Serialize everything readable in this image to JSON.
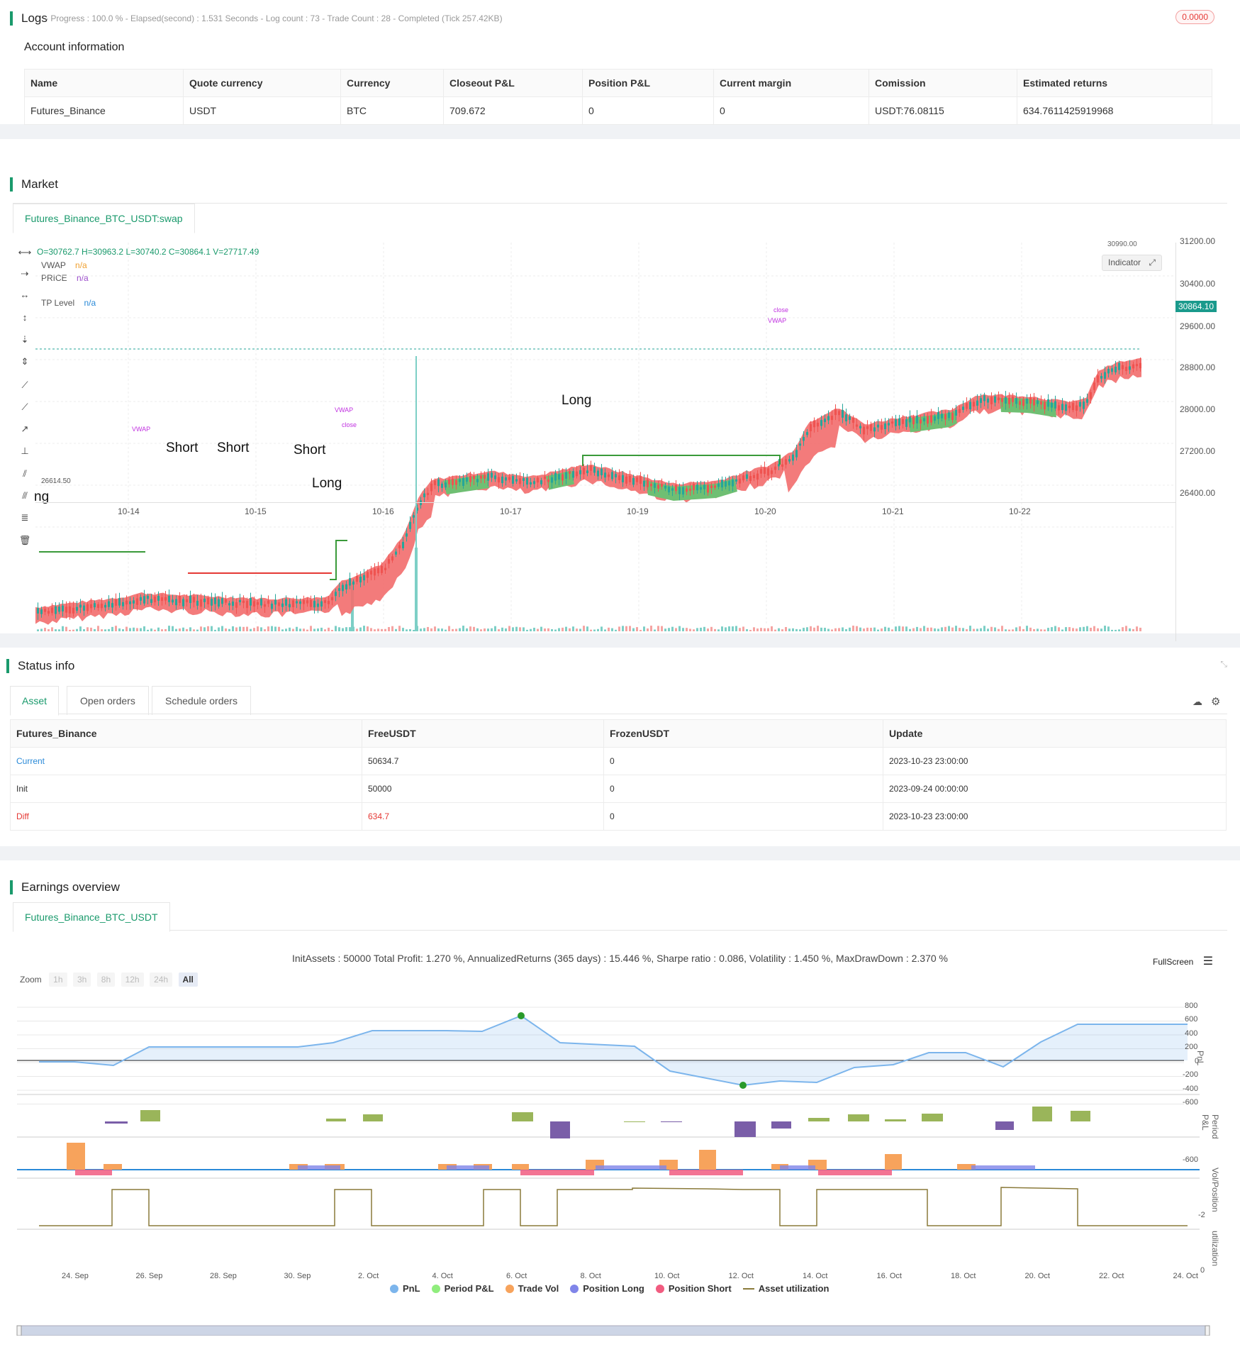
{
  "logs": {
    "title": "Logs",
    "status_line": "- Progress : 100.0 % - Elapsed(second) : 1.531  Seconds - Log count : 73 - Trade Count : 28 - Completed (Tick 257.42KB)",
    "badge": "0.0000"
  },
  "account": {
    "title": "Account information",
    "headers": [
      "Name",
      "Quote currency",
      "Currency",
      "Closeout P&L",
      "Position P&L",
      "Current margin",
      "Comission",
      "Estimated returns"
    ],
    "row": [
      "Futures_Binance",
      "USDT",
      "BTC",
      "709.672",
      "0",
      "0",
      "USDT:76.08115",
      "634.7611425919968"
    ]
  },
  "market": {
    "title": "Market",
    "tab": "Futures_Binance_BTC_USDT:swap",
    "ohlc": "O=30762.7 H=30963.2 L=30740.2 C=30864.1 V=27717.49",
    "legend": [
      {
        "name": "VWAP",
        "value": "n/a",
        "color": "#f0a030"
      },
      {
        "name": "PRICE",
        "value": "n/a",
        "color": "#9c4dcc"
      },
      {
        "name": "TP Level",
        "value": "n/a",
        "color": "#2a8ad8"
      }
    ],
    "indicator_btn": "Indicator",
    "y_ticks": [
      "31200.00",
      "30400.00",
      "29600.00",
      "28800.00",
      "28000.00",
      "27200.00",
      "26400.00"
    ],
    "price_tag": "30864.10",
    "high_mark": "30990.00",
    "low_mark": "26614.50",
    "x_ticks": [
      "10-14",
      "10-15",
      "10-16",
      "10-17",
      "10-19",
      "10-20",
      "10-21",
      "10-22"
    ],
    "signals": [
      "Short",
      "Short",
      "Short",
      "Long",
      "Long",
      "ng"
    ],
    "small_labels": [
      "VWAP",
      "close",
      "VWAP",
      "close",
      "VWAP",
      "close"
    ],
    "colors": {
      "up": "#26a69a",
      "down": "#ef5350",
      "fill_red": "#f26d6d",
      "fill_green": "#6fbf73",
      "tp_green": "#3a9a3a",
      "sl_red": "#e53935"
    }
  },
  "status": {
    "title": "Status info",
    "tabs": [
      "Asset",
      "Open orders",
      "Schedule orders"
    ],
    "headers": [
      "Futures_Binance",
      "FreeUSDT",
      "FrozenUSDT",
      "Update"
    ],
    "rows": [
      [
        "Current",
        "50634.7",
        "0",
        "2023-10-23 23:00:00"
      ],
      [
        "Init",
        "50000",
        "0",
        "2023-09-24 00:00:00"
      ],
      [
        "Diff",
        "634.7",
        "0",
        "2023-10-23 23:00:00"
      ]
    ]
  },
  "earnings": {
    "title": "Earnings overview",
    "tab": "Futures_Binance_BTC_USDT",
    "summary": "InitAssets : 50000 Total Profit: 1.270 %, AnnualizedReturns (365 days) : 15.446 %, Sharpe ratio : 0.086, Volatility : 1.450 %, MaxDrawDown : 2.370 %",
    "fullscreen": "FullScreen",
    "zoom_label": "Zoom",
    "zoom_options": [
      "1h",
      "3h",
      "8h",
      "12h",
      "24h",
      "All"
    ],
    "pnl_ticks": [
      "800",
      "600",
      "400",
      "200",
      "0",
      "-200",
      "-400",
      "-600"
    ],
    "axis_titles": [
      "PnL",
      "Period P&L",
      "Vol/Position",
      "utilization"
    ],
    "period_tick": "-600",
    "vol_tick": "-2",
    "util_tick": "0",
    "x_ticks": [
      "24. Sep",
      "26. Sep",
      "28. Sep",
      "30. Sep",
      "2. Oct",
      "4. Oct",
      "6. Oct",
      "8. Oct",
      "10. Oct",
      "12. Oct",
      "14. Oct",
      "16. Oct",
      "18. Oct",
      "20. Oct",
      "22. Oct",
      "24. Oct"
    ],
    "legend": [
      {
        "name": "PnL",
        "color": "#7cb5ec"
      },
      {
        "name": "Period P&L",
        "color": "#90ed7d"
      },
      {
        "name": "Trade Vol",
        "color": "#f7a35c"
      },
      {
        "name": "Position Long",
        "color": "#8085e9"
      },
      {
        "name": "Position Short",
        "color": "#f15c80"
      },
      {
        "name": "Asset utilization",
        "color": "#8a7a3a"
      }
    ]
  }
}
